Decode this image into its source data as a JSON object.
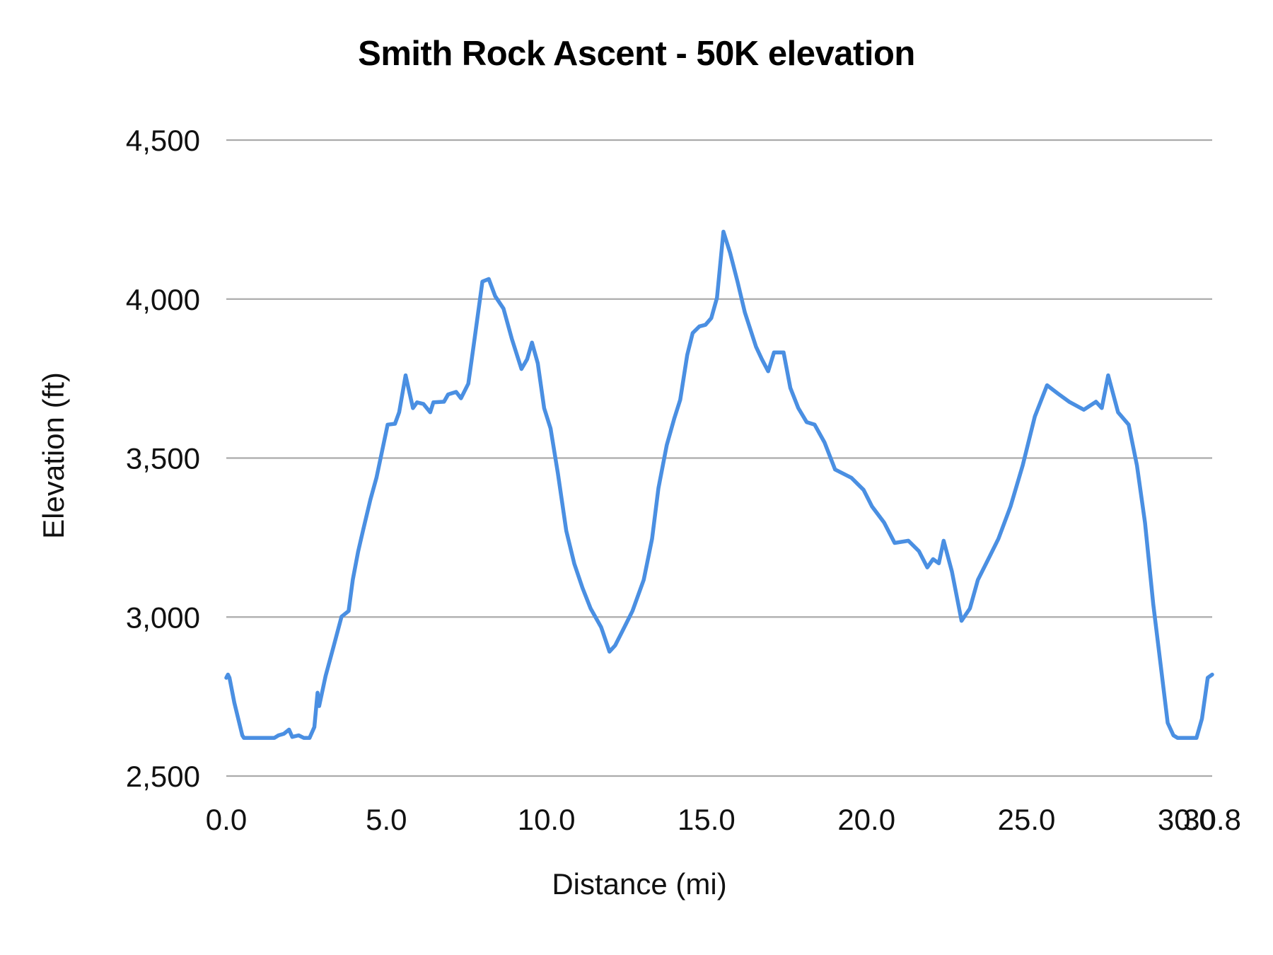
{
  "chart_data": {
    "type": "line",
    "title": "Smith Rock Ascent - 50K elevation",
    "xlabel": "Distance (mi)",
    "ylabel": "Elevation (ft)",
    "xlim": [
      0,
      30.8
    ],
    "ylim": [
      2500,
      4500
    ],
    "x_tick_labels": [
      "0.0",
      "5.0",
      "10.0",
      "15.0",
      "20.0",
      "25.0",
      "30.0",
      "30.8"
    ],
    "x_ticks": [
      0,
      5,
      10,
      15,
      20,
      25,
      30,
      30.8
    ],
    "y_tick_labels": [
      "2,500",
      "3,000",
      "3,500",
      "4,000",
      "4,500"
    ],
    "y_ticks": [
      2500,
      3000,
      3500,
      4000,
      4500
    ],
    "grid": {
      "horizontal": true,
      "vertical": false
    },
    "legend": null,
    "colors": {
      "line": "#4a8fe2",
      "grid": "#ababab"
    },
    "series": [
      {
        "name": "Elevation",
        "x": [
          0.0,
          0.05,
          0.1,
          0.25,
          0.5,
          0.55,
          1.5,
          1.63,
          1.8,
          1.96,
          2.06,
          2.26,
          2.42,
          2.6,
          2.75,
          2.85,
          2.9,
          3.1,
          3.36,
          3.6,
          3.82,
          3.95,
          4.12,
          4.28,
          4.5,
          4.69,
          4.89,
          5.04,
          5.27,
          5.4,
          5.6,
          5.83,
          5.96,
          6.16,
          6.37,
          6.47,
          6.8,
          6.93,
          7.18,
          7.33,
          7.56,
          7.74,
          8.0,
          8.2,
          8.4,
          8.66,
          8.92,
          9.22,
          9.4,
          9.55,
          9.73,
          9.93,
          10.13,
          10.36,
          10.62,
          10.87,
          11.13,
          11.38,
          11.71,
          11.97,
          12.15,
          12.41,
          12.69,
          13.04,
          13.3,
          13.5,
          13.76,
          14.0,
          14.18,
          14.4,
          14.57,
          14.78,
          14.97,
          15.15,
          15.33,
          15.53,
          15.74,
          15.97,
          16.2,
          16.55,
          16.73,
          16.93,
          17.11,
          17.41,
          17.62,
          17.87,
          18.13,
          18.38,
          18.69,
          19.02,
          19.53,
          19.91,
          20.17,
          20.55,
          20.88,
          21.31,
          21.64,
          21.9,
          22.08,
          22.26,
          22.41,
          22.67,
          22.97,
          23.23,
          23.48,
          23.74,
          24.12,
          24.5,
          24.88,
          25.26,
          25.64,
          25.98,
          26.33,
          26.79,
          27.17,
          27.35,
          27.55,
          27.86,
          28.19,
          28.45,
          28.7,
          28.96,
          29.21,
          29.41,
          29.59,
          29.72,
          30.31,
          30.48,
          30.66,
          30.8
        ],
        "y": [
          2809,
          2819,
          2809,
          2731,
          2628,
          2620,
          2620,
          2628,
          2633,
          2646,
          2623,
          2628,
          2620,
          2620,
          2654,
          2762,
          2720,
          2814,
          2911,
          3001,
          3019,
          3117,
          3207,
          3276,
          3369,
          3438,
          3533,
          3605,
          3608,
          3644,
          3760,
          3657,
          3675,
          3670,
          3644,
          3675,
          3677,
          3700,
          3708,
          3688,
          3734,
          3863,
          4055,
          4063,
          4009,
          3970,
          3875,
          3780,
          3811,
          3863,
          3798,
          3657,
          3593,
          3451,
          3271,
          3168,
          3091,
          3027,
          2968,
          2891,
          2911,
          2963,
          3019,
          3117,
          3246,
          3405,
          3541,
          3626,
          3683,
          3824,
          3893,
          3914,
          3919,
          3940,
          4004,
          4212,
          4145,
          4055,
          3958,
          3850,
          3811,
          3773,
          3832,
          3832,
          3721,
          3657,
          3613,
          3605,
          3549,
          3464,
          3438,
          3400,
          3348,
          3297,
          3233,
          3240,
          3207,
          3156,
          3182,
          3169,
          3240,
          3143,
          2988,
          3027,
          3117,
          3169,
          3246,
          3348,
          3477,
          3631,
          3729,
          3703,
          3677,
          3652,
          3677,
          3657,
          3760,
          3644,
          3605,
          3477,
          3297,
          3040,
          2834,
          2667,
          2628,
          2620,
          2620,
          2680,
          2809,
          2819
        ]
      }
    ]
  }
}
